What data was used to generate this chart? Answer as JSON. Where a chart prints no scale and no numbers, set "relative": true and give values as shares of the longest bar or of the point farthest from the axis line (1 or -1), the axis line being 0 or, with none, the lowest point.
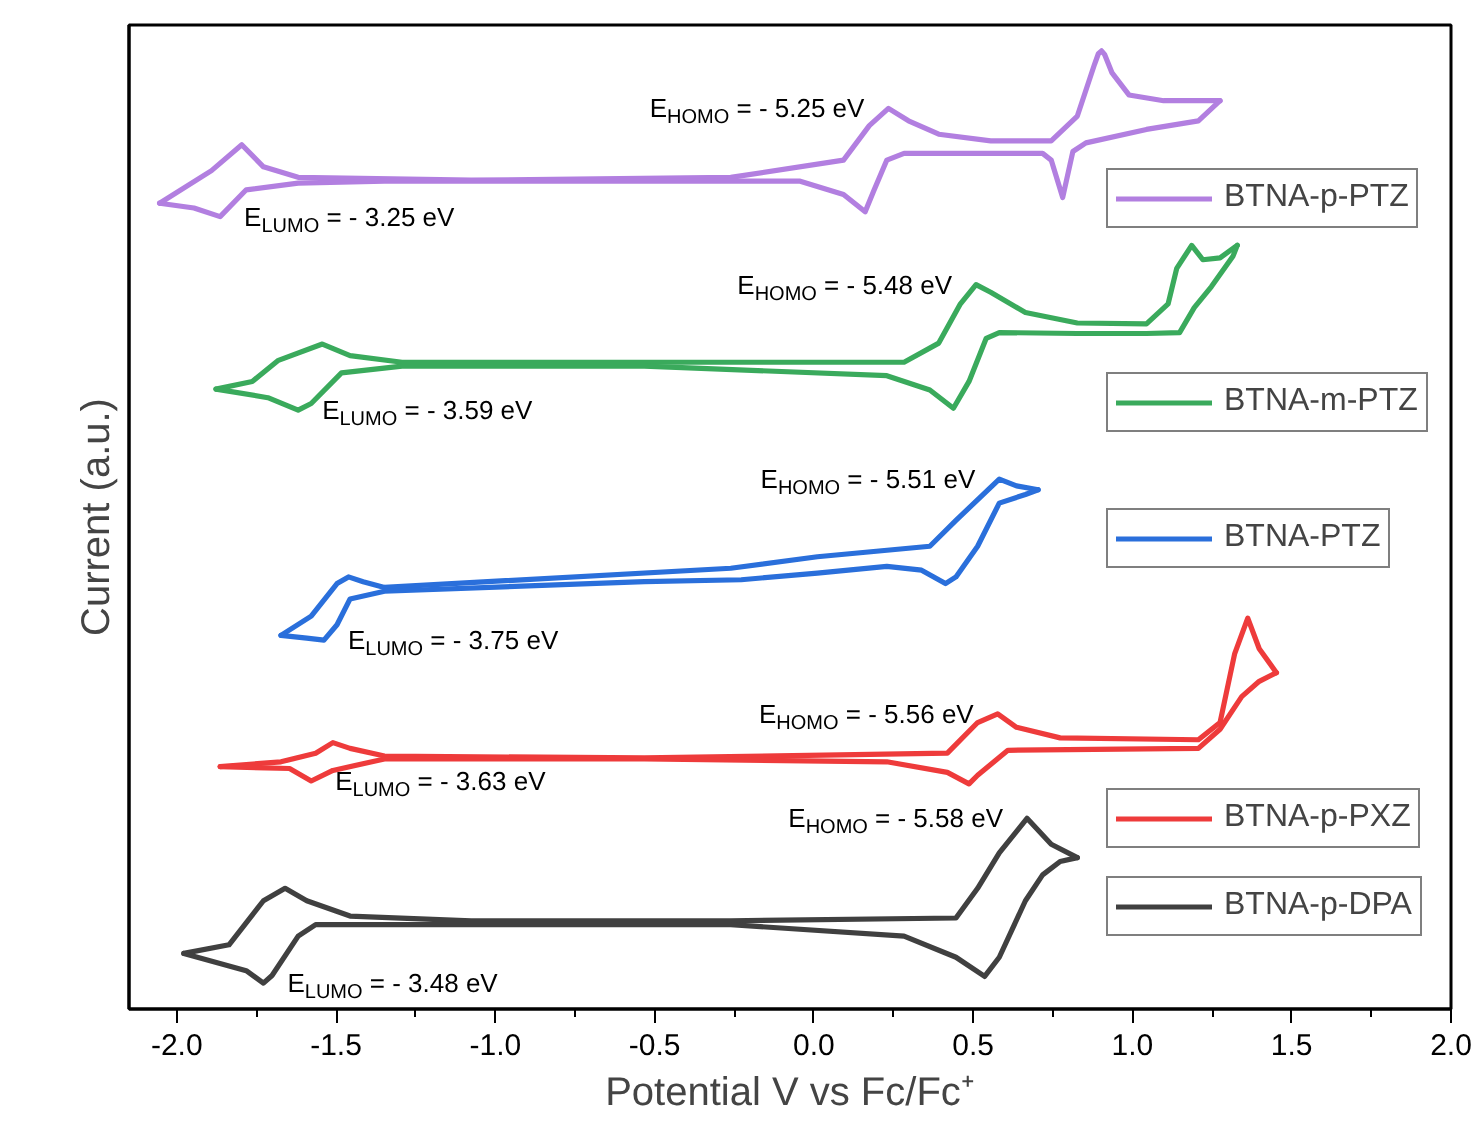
{
  "chart_data": {
    "type": "line",
    "relative": true,
    "xlabel": "Potential V vs Fc/Fc⁺",
    "ylabel": "Current (a.u.)",
    "xlim": [
      -2.15,
      2.0
    ],
    "xticks": [
      {
        "value": -2,
        "label": "-2.0"
      },
      {
        "value": -1.5,
        "label": "-1.5"
      },
      {
        "value": -1,
        "label": "-1.0"
      },
      {
        "value": -0.5,
        "label": "-0.5"
      },
      {
        "value": 0,
        "label": "0.0"
      },
      {
        "value": 0.5,
        "label": "0.5"
      },
      {
        "value": 1,
        "label": "1.0"
      },
      {
        "value": 1.5,
        "label": "1.5"
      },
      {
        "value": 2,
        "label": "2.0"
      }
    ],
    "tick_labels": "x",
    "grid": false,
    "legend": "right",
    "series": [
      {
        "name": "BTNA-p-PTZ",
        "color": "#b27fe0",
        "x": [
          -2.054,
          -1.891,
          -1.796,
          -1.728,
          -1.619,
          -1.076,
          -0.261,
          0.093,
          0.174,
          0.234,
          0.297,
          0.392,
          0.555,
          0.745,
          0.827,
          0.881,
          0.893,
          0.903,
          0.913,
          0.936,
          0.989,
          1.098,
          1.275
        ],
        "values": [
          0.841,
          0.875,
          0.902,
          0.879,
          0.868,
          0.865,
          0.868,
          0.886,
          0.922,
          0.94,
          0.927,
          0.913,
          0.906,
          0.906,
          0.932,
          0.986,
          0.997,
          1.0,
          0.996,
          0.977,
          0.954,
          0.948,
          0.948
        ]
      },
      {
        "color": "#b27fe0",
        "x": [
          -2.054,
          -1.946,
          -1.864,
          -1.782,
          -1.619,
          -1.348,
          -0.532,
          -0.043,
          0.093,
          0.161,
          0.188,
          0.229,
          0.283,
          0.718,
          0.745,
          0.781,
          0.813,
          0.854,
          1.044,
          1.207,
          1.275
        ],
        "values": [
          0.841,
          0.836,
          0.827,
          0.855,
          0.862,
          0.864,
          0.864,
          0.864,
          0.85,
          0.832,
          0.854,
          0.886,
          0.893,
          0.893,
          0.886,
          0.847,
          0.895,
          0.904,
          0.918,
          0.927,
          0.948
        ]
      },
      {
        "name": "BTNA-m-PTZ",
        "color": "#3aaa5c",
        "x": [
          -1.877,
          -1.763,
          -1.681,
          -1.543,
          -1.456,
          -1.293,
          -0.532,
          0.283,
          0.392,
          0.46,
          0.509,
          0.555,
          0.664,
          0.827,
          1.044,
          1.112,
          1.139,
          1.186,
          1.221,
          1.275,
          1.329
        ],
        "values": [
          0.647,
          0.655,
          0.677,
          0.694,
          0.682,
          0.675,
          0.675,
          0.675,
          0.695,
          0.736,
          0.756,
          0.748,
          0.727,
          0.716,
          0.715,
          0.736,
          0.773,
          0.797,
          0.782,
          0.784,
          0.797
        ]
      },
      {
        "color": "#3aaa5c",
        "x": [
          -1.877,
          -1.714,
          -1.619,
          -1.578,
          -1.483,
          -1.293,
          -0.532,
          0.229,
          0.364,
          0.438,
          0.487,
          0.541,
          0.582,
          0.827,
          1.044,
          1.148,
          1.194,
          1.248,
          1.316,
          1.329
        ],
        "values": [
          0.647,
          0.638,
          0.625,
          0.632,
          0.664,
          0.671,
          0.671,
          0.661,
          0.646,
          0.627,
          0.655,
          0.7,
          0.706,
          0.705,
          0.705,
          0.706,
          0.732,
          0.754,
          0.786,
          0.797
        ]
      },
      {
        "name": "BTNA-PTZ",
        "color": "#2a6fdb",
        "x": [
          -1.673,
          -1.578,
          -1.497,
          -1.461,
          -1.415,
          -1.348,
          -0.261,
          0.011,
          0.364,
          0.446,
          0.582,
          0.636,
          0.704
        ],
        "values": [
          0.39,
          0.41,
          0.444,
          0.451,
          0.446,
          0.44,
          0.46,
          0.472,
          0.483,
          0.51,
          0.553,
          0.546,
          0.542
        ]
      },
      {
        "color": "#2a6fdb",
        "x": [
          -1.673,
          -1.592,
          -1.538,
          -1.497,
          -1.456,
          -1.348,
          -0.532,
          -0.228,
          0.011,
          0.229,
          0.338,
          0.413,
          0.446,
          0.514,
          0.582,
          0.664,
          0.704
        ],
        "values": [
          0.39,
          0.387,
          0.385,
          0.401,
          0.428,
          0.436,
          0.446,
          0.448,
          0.455,
          0.462,
          0.458,
          0.444,
          0.451,
          0.483,
          0.528,
          0.537,
          0.542
        ]
      },
      {
        "name": "BTNA-p-PXZ",
        "color": "#ee3b3b",
        "x": [
          -1.864,
          -1.673,
          -1.564,
          -1.51,
          -1.456,
          -1.348,
          -0.532,
          0.419,
          0.514,
          0.577,
          0.636,
          0.773,
          1.207,
          1.275,
          1.321,
          1.362,
          1.398,
          1.452
        ],
        "values": [
          0.253,
          0.258,
          0.267,
          0.278,
          0.272,
          0.264,
          0.262,
          0.267,
          0.299,
          0.308,
          0.294,
          0.283,
          0.281,
          0.299,
          0.371,
          0.408,
          0.376,
          0.351
        ]
      },
      {
        "color": "#ee3b3b",
        "x": [
          -1.864,
          -1.646,
          -1.578,
          -1.51,
          -1.348,
          -0.532,
          0.229,
          0.419,
          0.487,
          0.514,
          0.609,
          1.207,
          1.275,
          1.343,
          1.398,
          1.452
        ],
        "values": [
          0.253,
          0.251,
          0.238,
          0.249,
          0.261,
          0.261,
          0.258,
          0.247,
          0.235,
          0.244,
          0.27,
          0.272,
          0.292,
          0.326,
          0.342,
          0.351
        ]
      },
      {
        "name": "BTNA-p-DPA",
        "color": "#404040",
        "x": [
          -1.978,
          -1.836,
          -1.728,
          -1.66,
          -1.592,
          -1.456,
          -1.076,
          -0.261,
          0.446,
          0.514,
          0.582,
          0.669,
          0.745,
          0.827
        ],
        "values": [
          0.058,
          0.067,
          0.113,
          0.126,
          0.113,
          0.097,
          0.092,
          0.092,
          0.095,
          0.126,
          0.163,
          0.199,
          0.172,
          0.158
        ]
      },
      {
        "color": "#404040",
        "x": [
          -1.978,
          -1.782,
          -1.728,
          -1.701,
          -1.619,
          -1.564,
          -1.076,
          -0.261,
          0.283,
          0.446,
          0.536,
          0.582,
          0.664,
          0.718,
          0.773,
          0.827
        ],
        "values": [
          0.058,
          0.04,
          0.027,
          0.035,
          0.076,
          0.088,
          0.088,
          0.088,
          0.076,
          0.054,
          0.034,
          0.054,
          0.113,
          0.14,
          0.154,
          0.158
        ]
      }
    ],
    "annotations": [
      {
        "text": "E$_{HOMO}$ = - 5.25 eV",
        "x": 0.234,
        "y": 0.94
      },
      {
        "text": "E$_{LUMO}$ = - 3.25 eV",
        "x": -1.864,
        "y": 0.827
      },
      {
        "text": "E$_{HOMO}$ = - 5.48 eV",
        "x": 0.509,
        "y": 0.756
      },
      {
        "text": "E$_{LUMO}$ = - 3.59 eV",
        "x": -1.619,
        "y": 0.625
      },
      {
        "text": "E$_{HOMO}$ = - 5.51 eV",
        "x": 0.582,
        "y": 0.553
      },
      {
        "text": "E$_{LUMO}$ = - 3.75 eV",
        "x": -1.538,
        "y": 0.385
      },
      {
        "text": "E$_{HOMO}$ = - 5.56 eV",
        "x": 0.577,
        "y": 0.308
      },
      {
        "text": "E$_{LUMO}$ = - 3.63 eV",
        "x": -1.578,
        "y": 0.238
      },
      {
        "text": "E$_{HOMO}$ = - 5.58 eV",
        "x": 0.669,
        "y": 0.199
      },
      {
        "text": "E$_{LUMO}$ = - 3.48 eV",
        "x": -1.728,
        "y": 0.027
      }
    ]
  }
}
